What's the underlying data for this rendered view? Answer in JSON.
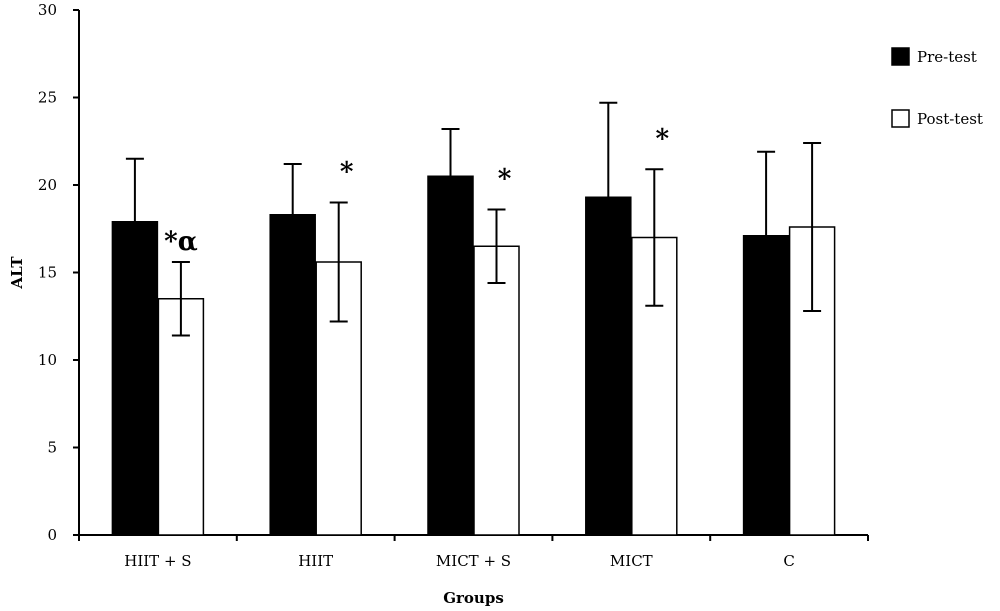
{
  "chart_data": {
    "type": "bar",
    "title": "",
    "xlabel": "Groups",
    "ylabel": "ALT",
    "ylim": [
      0,
      30
    ],
    "yticks": [
      0,
      5,
      10,
      15,
      20,
      25,
      30
    ],
    "grid": false,
    "legend_position": "top-right",
    "categories": [
      "HIIT + S",
      "HIIT",
      "MICT + S",
      "MICT",
      "C"
    ],
    "series": [
      {
        "name": "Pre-test",
        "color": "#000000",
        "values": [
          17.9,
          18.3,
          20.5,
          19.3,
          17.1
        ],
        "errors": [
          3.6,
          2.9,
          2.7,
          5.4,
          4.8
        ]
      },
      {
        "name": "Post-test",
        "color": "#ffffff",
        "values": [
          13.5,
          15.6,
          16.5,
          17.0,
          17.6
        ],
        "errors": [
          2.1,
          3.4,
          2.1,
          3.9,
          4.8
        ]
      }
    ],
    "annotations": [
      "*α",
      "*",
      "*",
      "*",
      ""
    ]
  }
}
